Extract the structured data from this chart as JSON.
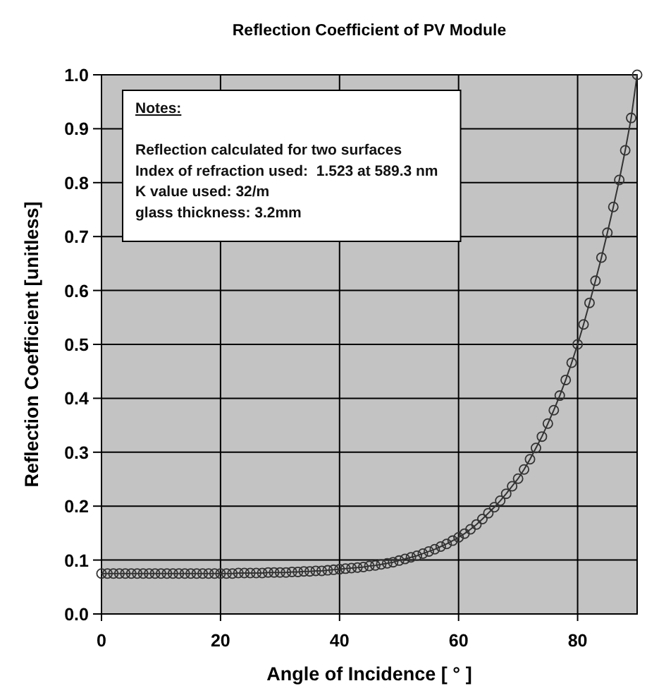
{
  "chart_data": {
    "type": "line",
    "title": "Reflection Coefficient of PV Module",
    "xlabel": "Angle of Incidence [ ° ]",
    "ylabel": "Reflection Coefficient [unitless]",
    "annotations": [
      "Notes:",
      "Reflection calculated for two surfaces",
      "Index of refraction used:  1.523 at 589.3 nm",
      "K value used: 32/m",
      "glass thickness: 3.2mm"
    ],
    "x": [
      0,
      1,
      2,
      3,
      4,
      5,
      6,
      7,
      8,
      9,
      10,
      11,
      12,
      13,
      14,
      15,
      16,
      17,
      18,
      19,
      20,
      21,
      22,
      23,
      24,
      25,
      26,
      27,
      28,
      29,
      30,
      31,
      32,
      33,
      34,
      35,
      36,
      37,
      38,
      39,
      40,
      41,
      42,
      43,
      44,
      45,
      46,
      47,
      48,
      49,
      50,
      51,
      52,
      53,
      54,
      55,
      56,
      57,
      58,
      59,
      60,
      61,
      62,
      63,
      64,
      65,
      66,
      67,
      68,
      69,
      70,
      71,
      72,
      73,
      74,
      75,
      76,
      77,
      78,
      79,
      80,
      81,
      82,
      83,
      84,
      85,
      86,
      87,
      88,
      89,
      90
    ],
    "series": [
      {
        "color": "#333333",
        "values": [
          0.075,
          0.075,
          0.075,
          0.075,
          0.075,
          0.075,
          0.075,
          0.075,
          0.075,
          0.075,
          0.075,
          0.075,
          0.075,
          0.075,
          0.075,
          0.075,
          0.075,
          0.075,
          0.075,
          0.075,
          0.075,
          0.075,
          0.075,
          0.076,
          0.076,
          0.076,
          0.076,
          0.076,
          0.077,
          0.077,
          0.077,
          0.077,
          0.078,
          0.078,
          0.079,
          0.079,
          0.08,
          0.08,
          0.081,
          0.082,
          0.083,
          0.084,
          0.085,
          0.086,
          0.087,
          0.089,
          0.09,
          0.092,
          0.094,
          0.096,
          0.099,
          0.102,
          0.105,
          0.108,
          0.112,
          0.116,
          0.12,
          0.125,
          0.13,
          0.136,
          0.142,
          0.149,
          0.157,
          0.166,
          0.176,
          0.187,
          0.198,
          0.21,
          0.223,
          0.237,
          0.251,
          0.268,
          0.287,
          0.308,
          0.329,
          0.353,
          0.378,
          0.405,
          0.434,
          0.466,
          0.5,
          0.537,
          0.577,
          0.618,
          0.661,
          0.707,
          0.755,
          0.805,
          0.86,
          0.92,
          1.0
        ]
      }
    ],
    "xlim": [
      0,
      90
    ],
    "xticks": [
      0,
      20,
      40,
      60,
      80
    ],
    "ylim": [
      0,
      1
    ],
    "yticks": [
      {
        "value": 0,
        "label": "0.0"
      },
      0.1,
      0.2,
      0.3,
      0.4,
      0.5,
      0.6,
      0.7,
      0.8,
      0.9,
      {
        "value": 1,
        "label": "1.0"
      }
    ],
    "grid": true,
    "marker": "circle",
    "line_style": "solid"
  }
}
